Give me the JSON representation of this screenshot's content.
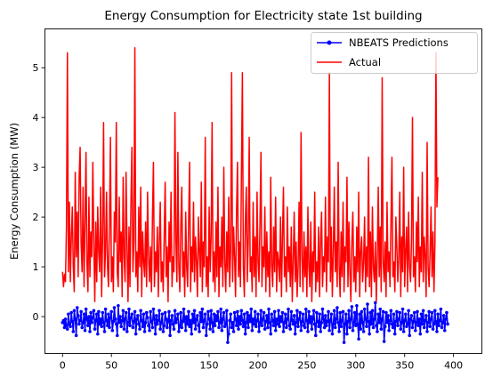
{
  "chart_data": {
    "type": "line",
    "title": "Energy Consumption for Electricity state 1st building",
    "xlabel": "",
    "ylabel": "Energy Consumption (MW)",
    "xlim": [
      -18,
      429
    ],
    "ylim": [
      -0.74,
      5.78
    ],
    "xticks": [
      0,
      50,
      100,
      150,
      200,
      250,
      300,
      350,
      400
    ],
    "yticks": [
      0,
      1,
      2,
      3,
      4,
      5
    ],
    "grid": false,
    "legend_position": "top-right",
    "series": [
      {
        "name": "NBEATS Predictions",
        "color": "#0000ff",
        "marker": "circle",
        "x_start": 0,
        "x_step": 1,
        "values": [
          -0.12,
          -0.08,
          -0.22,
          -0.05,
          -0.18,
          -0.25,
          0.05,
          -0.15,
          -0.2,
          0.08,
          -0.1,
          -0.3,
          0.12,
          -0.05,
          -0.38,
          0.18,
          0.02,
          -0.15,
          -0.08,
          0.1,
          -0.22,
          -0.12,
          0.05,
          -0.28,
          0.15,
          -0.05,
          -0.18,
          0.0,
          -0.3,
          0.08,
          -0.12,
          -0.02,
          0.12,
          -0.25,
          -0.08,
          0.05,
          -0.35,
          0.1,
          -0.15,
          -0.05,
          -0.2,
          0.08,
          -0.12,
          -0.3,
          0.15,
          -0.08,
          -0.18,
          0.05,
          -0.22,
          -0.02,
          0.1,
          -0.28,
          -0.1,
          0.18,
          -0.05,
          -0.15,
          -0.38,
          0.22,
          -0.12,
          0.0,
          -0.2,
          -0.08,
          0.12,
          -0.25,
          -0.05,
          0.08,
          -0.3,
          -0.12,
          0.15,
          -0.18,
          -0.02,
          0.05,
          -0.22,
          -0.1,
          0.1,
          -0.35,
          -0.05,
          0.02,
          -0.15,
          -0.25,
          0.12,
          -0.08,
          -0.2,
          0.05,
          -0.3,
          -0.12,
          0.08,
          -0.02,
          -0.18,
          -0.28,
          0.1,
          -0.1,
          -0.22,
          0.15,
          -0.05,
          -0.35,
          0.02,
          -0.15,
          -0.08,
          0.12,
          -0.25,
          -0.12,
          0.05,
          -0.3,
          -0.18,
          0.08,
          -0.05,
          -0.22,
          -0.1,
          0.1,
          -0.38,
          -0.08,
          0.02,
          -0.15,
          -0.25,
          0.12,
          -0.12,
          -0.05,
          0.05,
          -0.3,
          -0.18,
          0.08,
          -0.22,
          -0.1,
          0.15,
          -0.05,
          -0.28,
          0.0,
          -0.15,
          0.1,
          -0.2,
          -0.08,
          -0.35,
          0.05,
          -0.12,
          0.12,
          -0.25,
          -0.05,
          0.02,
          -0.18,
          -0.3,
          0.08,
          -0.1,
          0.15,
          -0.22,
          -0.08,
          0.05,
          -0.38,
          -0.15,
          0.1,
          -0.05,
          -0.25,
          0.12,
          -0.12,
          -0.3,
          0.05,
          -0.18,
          0.02,
          -0.08,
          0.1,
          -0.22,
          -0.12,
          0.15,
          -0.28,
          -0.05,
          0.08,
          -0.2,
          -0.15,
          0.12,
          -0.52,
          -0.35,
          -0.08,
          0.05,
          -0.22,
          -0.12,
          -0.3,
          0.08,
          -0.05,
          -0.18,
          0.1,
          -0.25,
          0.0,
          -0.15,
          0.12,
          -0.08,
          -0.2,
          0.05,
          -0.35,
          -0.12,
          0.08,
          -0.22,
          0.02,
          -0.1,
          0.15,
          -0.28,
          -0.05,
          -0.15,
          0.1,
          -0.2,
          -0.08,
          0.05,
          -0.3,
          -0.12,
          0.12,
          -0.18,
          -0.05,
          0.08,
          -0.25,
          -0.1,
          0.02,
          -0.22,
          0.15,
          -0.12,
          -0.35,
          0.05,
          -0.08,
          -0.18,
          0.1,
          -0.28,
          -0.05,
          -0.15,
          0.12,
          -0.2,
          0.0,
          -0.1,
          0.08,
          -0.3,
          -0.12,
          0.05,
          -0.22,
          -0.05,
          0.15,
          -0.18,
          -0.25,
          0.1,
          -0.08,
          -0.15,
          0.02,
          -0.35,
          -0.12,
          0.12,
          -0.2,
          -0.05,
          0.08,
          -0.28,
          -0.1,
          0.05,
          -0.18,
          -0.22,
          0.15,
          -0.08,
          -0.3,
          0.1,
          -0.12,
          0.0,
          -0.25,
          -0.05,
          0.12,
          -0.15,
          -0.38,
          0.08,
          -0.1,
          -0.2,
          0.05,
          -0.3,
          -0.12,
          0.15,
          -0.05,
          -0.22,
          0.02,
          -0.18,
          -0.1,
          0.1,
          -0.28,
          -0.08,
          0.05,
          -0.35,
          -0.15,
          0.12,
          -0.22,
          -0.05,
          0.18,
          -0.12,
          -0.3,
          0.08,
          -0.2,
          -0.08,
          0.1,
          -0.52,
          -0.15,
          0.05,
          -0.35,
          -0.1,
          0.12,
          -0.22,
          -0.05,
          0.2,
          -0.28,
          -0.12,
          0.08,
          -0.18,
          0.22,
          -0.15,
          -0.45,
          0.05,
          -0.25,
          0.1,
          -0.12,
          -0.3,
          0.15,
          -0.05,
          -0.2,
          0.25,
          -0.1,
          -0.35,
          0.08,
          -0.15,
          0.12,
          -0.22,
          -0.05,
          0.28,
          -0.18,
          -0.3,
          0.05,
          -0.12,
          0.15,
          -0.25,
          -0.05,
          0.1,
          -0.5,
          -0.2,
          0.08,
          -0.12,
          0.02,
          -0.28,
          -0.08,
          0.12,
          -0.15,
          -0.22,
          0.05,
          -0.35,
          -0.1,
          0.1,
          -0.18,
          -0.05,
          0.08,
          -0.25,
          -0.12,
          0.15,
          -0.3,
          -0.08,
          0.05,
          -0.2,
          -0.15,
          0.12,
          -0.38,
          -0.05,
          0.02,
          -0.22,
          -0.1,
          0.08,
          -0.28,
          -0.12,
          0.1,
          -0.18,
          -0.05,
          -0.35,
          0.05,
          -0.15,
          0.12,
          -0.22,
          -0.08,
          0.02,
          -0.3,
          -0.12,
          0.1,
          -0.2,
          -0.05,
          0.08,
          -0.25,
          -0.15,
          0.12,
          -0.1,
          -0.3,
          0.05,
          -0.18,
          -0.08,
          0.15,
          -0.22,
          -0.12,
          0.02,
          -0.28,
          -0.05,
          0.08,
          -0.15
        ]
      },
      {
        "name": "Actual",
        "color": "#ff0000",
        "marker": "none",
        "x_start": 0,
        "x_step": 1,
        "values": [
          0.9,
          0.6,
          0.85,
          0.7,
          1.8,
          5.3,
          0.9,
          2.3,
          0.7,
          1.6,
          2.2,
          1.0,
          0.5,
          2.9,
          1.2,
          2.1,
          0.8,
          2.8,
          3.4,
          1.5,
          0.9,
          2.6,
          0.6,
          1.9,
          3.3,
          1.1,
          0.5,
          2.4,
          0.8,
          1.7,
          1.2,
          3.1,
          1.5,
          0.3,
          1.9,
          0.7,
          2.2,
          1.3,
          0.9,
          2.6,
          0.4,
          1.6,
          3.9,
          0.8,
          1.3,
          2.5,
          1.0,
          0.6,
          1.9,
          3.6,
          0.7,
          1.2,
          0.5,
          2.1,
          1.5,
          3.9,
          0.9,
          0.6,
          2.4,
          1.1,
          1.7,
          0.4,
          2.8,
          1.2,
          0.7,
          2.9,
          1.4,
          0.3,
          1.8,
          0.6,
          2.3,
          3.4,
          0.9,
          1.5,
          5.4,
          0.8,
          1.3,
          0.5,
          2.2,
          1.0,
          2.6,
          0.4,
          1.7,
          1.1,
          0.8,
          1.9,
          0.6,
          2.5,
          1.2,
          0.7,
          1.4,
          0.5,
          2.0,
          3.1,
          0.6,
          1.3,
          0.9,
          1.8,
          0.4,
          1.5,
          2.3,
          0.7,
          1.1,
          0.5,
          1.6,
          2.7,
          0.8,
          1.4,
          0.3,
          1.9,
          1.1,
          2.5,
          0.6,
          1.2,
          0.9,
          4.1,
          1.5,
          0.7,
          3.3,
          1.0,
          0.5,
          1.8,
          2.6,
          0.8,
          1.3,
          0.4,
          2.1,
          1.0,
          0.6,
          1.9,
          3.1,
          0.5,
          1.4,
          0.9,
          2.3,
          0.7,
          1.6,
          1.1,
          0.4,
          2.0,
          1.3,
          0.8,
          2.7,
          0.5,
          1.5,
          1.0,
          3.6,
          0.6,
          1.2,
          0.4,
          2.2,
          0.9,
          1.6,
          3.9,
          0.7,
          1.3,
          0.5,
          1.9,
          0.8,
          2.6,
          0.4,
          1.4,
          1.0,
          2.0,
          0.6,
          3.0,
          1.1,
          0.5,
          1.7,
          0.9,
          2.4,
          0.6,
          1.3,
          4.9,
          0.7,
          1.8,
          1.2,
          0.4,
          2.1,
          3.1,
          0.8,
          1.5,
          0.6,
          2.8,
          4.9,
          1.0,
          0.4,
          1.9,
          2.6,
          0.7,
          1.5,
          3.6,
          0.9,
          1.2,
          0.5,
          2.3,
          0.8,
          1.6,
          0.4,
          2.5,
          1.1,
          0.7,
          1.9,
          3.3,
          0.6,
          1.4,
          1.0,
          2.2,
          0.5,
          1.7,
          0.8,
          1.3,
          0.4,
          2.8,
          1.0,
          0.6,
          1.8,
          0.9,
          2.4,
          0.5,
          1.3,
          1.1,
          0.7,
          2.0,
          0.4,
          1.6,
          2.6,
          0.8,
          1.2,
          0.5,
          2.2,
          0.9,
          1.4,
          0.6,
          1.8,
          0.3,
          1.1,
          2.1,
          0.7,
          1.5,
          0.4,
          1.0,
          2.3,
          0.6,
          3.7,
          1.2,
          0.5,
          1.7,
          0.8,
          1.4,
          0.4,
          2.2,
          1.0,
          0.6,
          1.9,
          0.3,
          1.3,
          0.9,
          2.5,
          0.5,
          1.1,
          0.7,
          1.8,
          0.4,
          1.5,
          2.1,
          0.6,
          1.2,
          0.9,
          2.4,
          0.5,
          1.6,
          1.1,
          4.9,
          0.7,
          1.8,
          0.4,
          1.3,
          2.6,
          0.9,
          1.5,
          0.6,
          3.1,
          1.0,
          0.4,
          1.7,
          0.8,
          2.3,
          0.5,
          1.4,
          1.1,
          2.8,
          0.6,
          1.9,
          0.9,
          0.3,
          1.5,
          2.1,
          0.7,
          1.2,
          0.5,
          1.8,
          0.9,
          2.5,
          0.4,
          1.3,
          1.6,
          0.7,
          1.1,
          2.0,
          0.5,
          1.4,
          0.8,
          3.2,
          0.6,
          1.7,
          0.4,
          2.2,
          1.0,
          0.7,
          1.5,
          0.3,
          1.2,
          2.6,
          0.8,
          1.8,
          0.5,
          4.8,
          1.1,
          0.7,
          1.5,
          0.4,
          2.3,
          0.9,
          1.3,
          0.6,
          1.9,
          3.2,
          0.8,
          1.1,
          0.5,
          2.0,
          1.4,
          0.7,
          1.2,
          2.5,
          0.4,
          1.6,
          0.9,
          3.0,
          0.6,
          1.3,
          1.8,
          0.5,
          2.1,
          1.0,
          0.7,
          1.5,
          4.0,
          0.8,
          1.2,
          0.5,
          1.9,
          1.1,
          2.4,
          0.6,
          1.4,
          0.9,
          2.9,
          0.7,
          1.6,
          1.2,
          0.4,
          3.5,
          1.0,
          0.6,
          1.3,
          2.2,
          0.8,
          1.7,
          0.5,
          1.5,
          5.3,
          2.2,
          2.8
        ]
      }
    ]
  }
}
